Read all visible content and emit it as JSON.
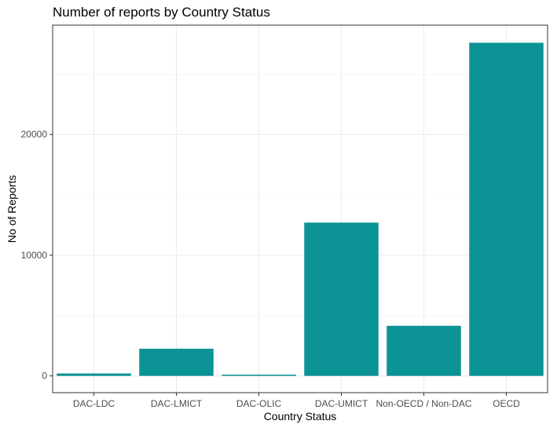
{
  "chart_data": {
    "type": "bar",
    "title": "Number of reports by Country Status",
    "xlabel": "Country Status",
    "ylabel": "No of Reports",
    "categories": [
      "DAC-LDC",
      "DAC-LMICT",
      "DAC-OLIC",
      "DAC-UMICT",
      "Non-OECD / Non-DAC",
      "OECD"
    ],
    "values": [
      200,
      2250,
      100,
      12700,
      4150,
      27600
    ],
    "ylim": [
      -1390,
      29060
    ],
    "yticks": [
      0,
      10000,
      20000
    ],
    "ytick_labels": [
      "0",
      "10000",
      "20000"
    ],
    "grid": true,
    "legend": "none",
    "bar_color": "#0b9396"
  }
}
